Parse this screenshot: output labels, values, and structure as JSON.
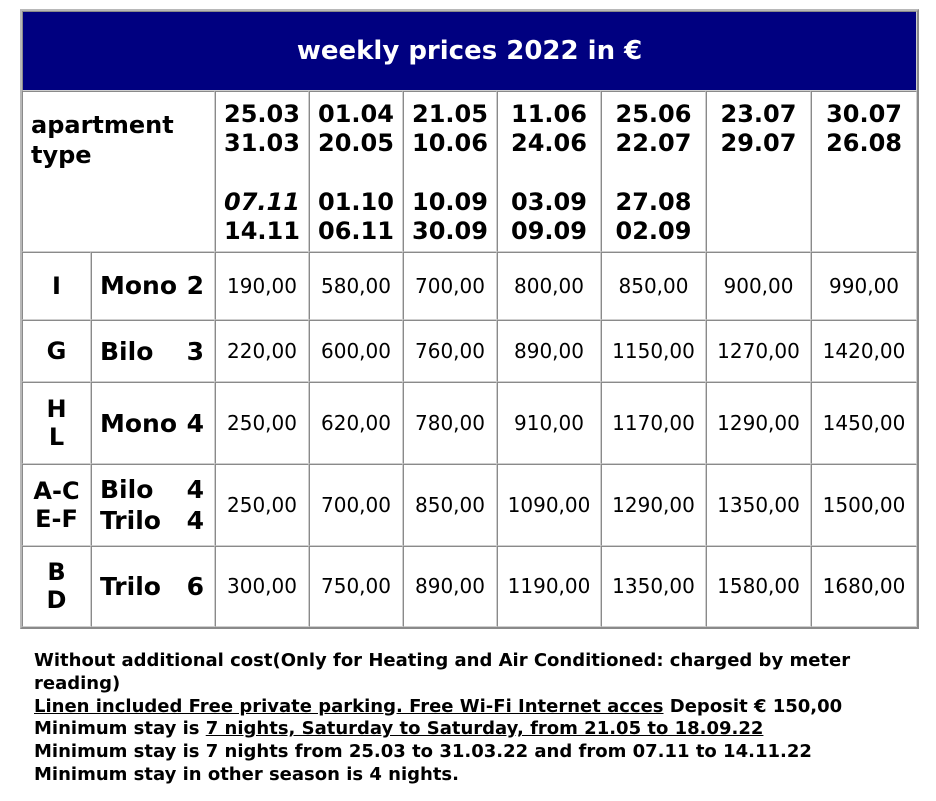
{
  "title": "weekly prices 2022 in €",
  "header": {
    "apartment_type": [
      "apartment",
      "type"
    ],
    "periods": [
      {
        "a": "25.03",
        "b": "31.03",
        "c": "07.11",
        "d": "14.11"
      },
      {
        "a": "01.04",
        "b": "20.05",
        "c": "01.10",
        "d": "06.11"
      },
      {
        "a": "21.05",
        "b": "10.06",
        "c": "10.09",
        "d": "30.09"
      },
      {
        "a": "11.06",
        "b": "24.06",
        "c": "03.09",
        "d": "09.09"
      },
      {
        "a": "25.06",
        "b": "22.07",
        "c": "27.08",
        "d": "02.09"
      },
      {
        "a": "23.07",
        "b": "29.07",
        "c": "",
        "d": ""
      },
      {
        "a": "30.07",
        "b": "26.08",
        "c": "",
        "d": ""
      }
    ]
  },
  "rows": [
    {
      "code": [
        "I"
      ],
      "type": [
        [
          "Mono",
          "2"
        ]
      ],
      "prices": [
        "190,00",
        "580,00",
        "700,00",
        "800,00",
        "850,00",
        "900,00",
        "990,00"
      ]
    },
    {
      "code": [
        "G"
      ],
      "type": [
        [
          "Bilo",
          "3"
        ]
      ],
      "prices": [
        "220,00",
        "600,00",
        "760,00",
        "890,00",
        "1150,00",
        "1270,00",
        "1420,00"
      ]
    },
    {
      "code": [
        "H",
        "L"
      ],
      "type": [
        [
          "Mono",
          "4"
        ]
      ],
      "prices": [
        "250,00",
        "620,00",
        "780,00",
        "910,00",
        "1170,00",
        "1290,00",
        "1450,00"
      ]
    },
    {
      "code": [
        "A-C",
        "E-F"
      ],
      "type": [
        [
          "Bilo",
          "4"
        ],
        [
          "Trilo",
          "4"
        ]
      ],
      "prices": [
        "250,00",
        "700,00",
        "850,00",
        "1090,00",
        "1290,00",
        "1350,00",
        "1500,00"
      ]
    },
    {
      "code": [
        "B",
        "D"
      ],
      "type": [
        [
          "Trilo",
          "6"
        ]
      ],
      "prices": [
        "300,00",
        "750,00",
        "890,00",
        "1190,00",
        "1350,00",
        "1580,00",
        "1680,00"
      ]
    }
  ],
  "notes": {
    "line1": "Without additional cost(Only for Heating and Air Conditioned: charged by meter reading)",
    "line2_underlined": "Linen included Free private parking. Free Wi-Fi Internet acces",
    "line2_rest": " Deposit € 150,00",
    "line3_prefix": "Minimum stay is ",
    "line3_underlined": "7 nights, Saturday to Saturday, from 21.05 to 18.09.22",
    "line4": "Minimum stay is 7 nights from 25.03 to 31.03.22 and from 07.11 to 14.11.22",
    "line5": "Minimum stay in other season is 4 nights."
  }
}
